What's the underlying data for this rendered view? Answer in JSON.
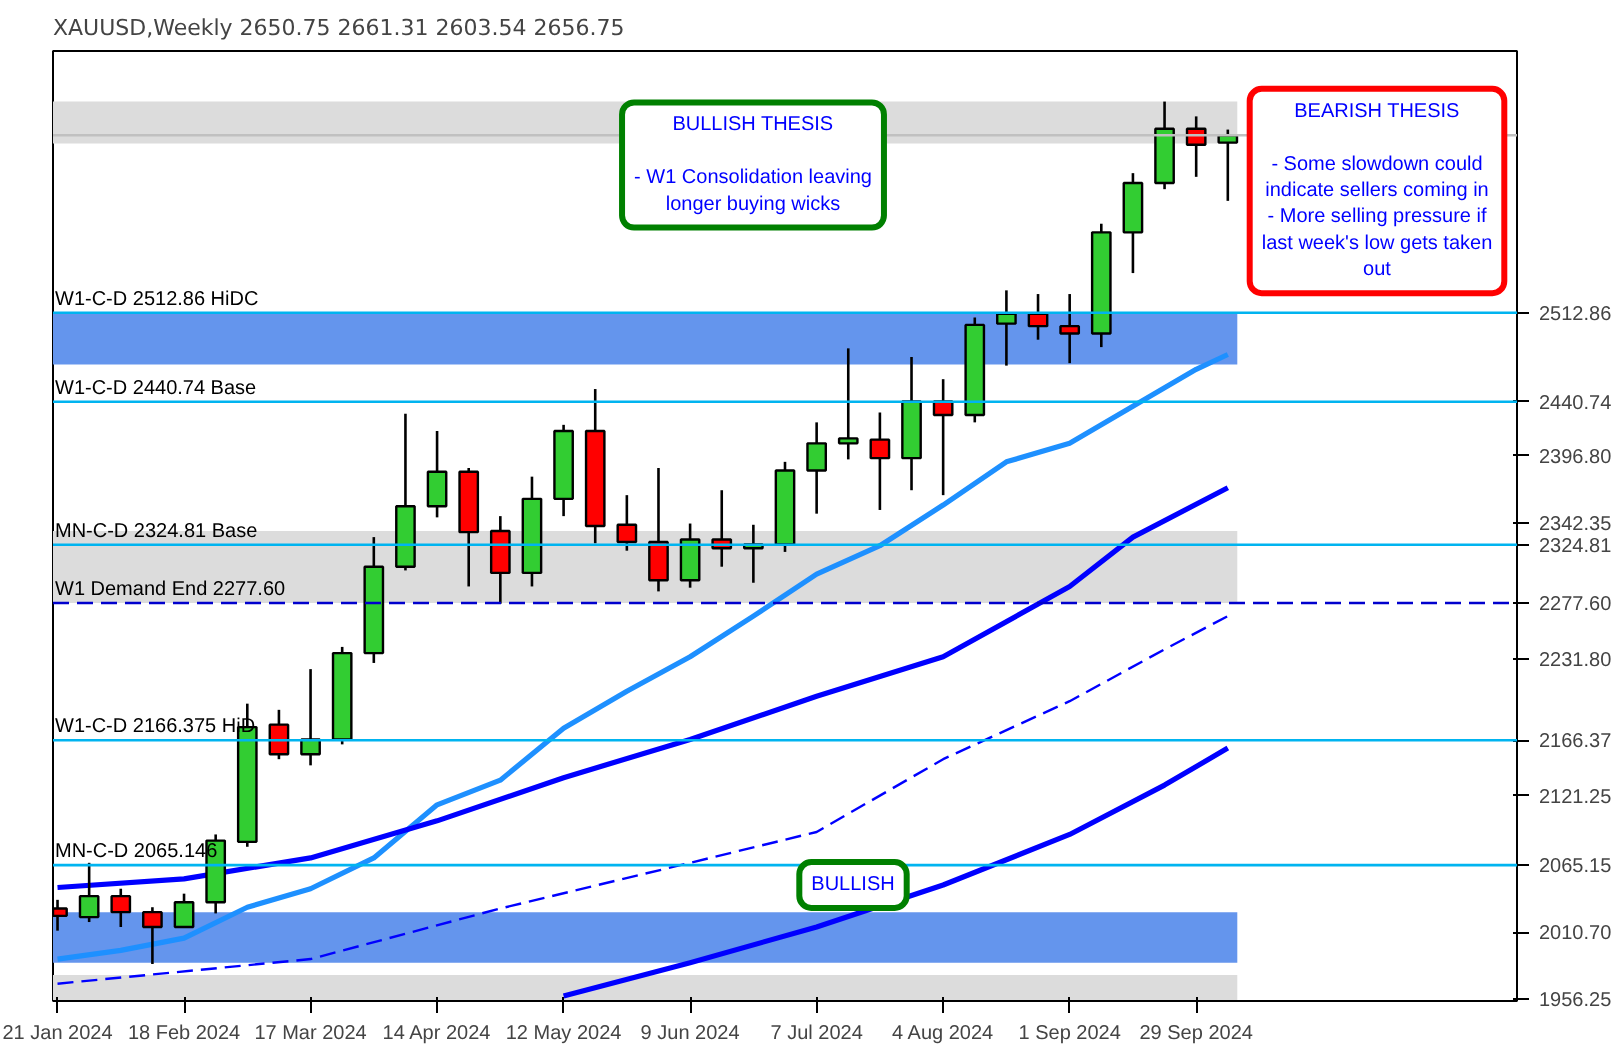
{
  "chart_data": {
    "type": "candlestick",
    "title": "XAUUSD,Weekly  2650.75 2661.31 2603.54 2656.75",
    "x": [
      "2024-01-21",
      "2024-01-28",
      "2024-02-04",
      "2024-02-11",
      "2024-02-18",
      "2024-02-25",
      "2024-03-03",
      "2024-03-10",
      "2024-03-17",
      "2024-03-24",
      "2024-03-31",
      "2024-04-07",
      "2024-04-14",
      "2024-04-21",
      "2024-04-28",
      "2024-05-05",
      "2024-05-12",
      "2024-05-19",
      "2024-05-26",
      "2024-06-02",
      "2024-06-09",
      "2024-06-16",
      "2024-06-23",
      "2024-06-30",
      "2024-07-07",
      "2024-07-14",
      "2024-07-21",
      "2024-07-28",
      "2024-08-04",
      "2024-08-11",
      "2024-08-18",
      "2024-08-25",
      "2024-09-01",
      "2024-09-08",
      "2024-09-15",
      "2024-09-22",
      "2024-09-29",
      "2024-10-06"
    ],
    "ohlc": [
      [
        2030,
        2037,
        2012,
        2024
      ],
      [
        2023,
        2067,
        2019,
        2040
      ],
      [
        2040,
        2046,
        2015,
        2027
      ],
      [
        2027,
        2031,
        1985,
        2015
      ],
      [
        2015,
        2042,
        2015,
        2035
      ],
      [
        2035,
        2090,
        2026,
        2085
      ],
      [
        2084,
        2196,
        2080,
        2177
      ],
      [
        2179,
        2191,
        2151,
        2155
      ],
      [
        2155,
        2224,
        2146,
        2167
      ],
      [
        2167,
        2242,
        2163,
        2237
      ],
      [
        2237,
        2331,
        2229,
        2307
      ],
      [
        2307,
        2431,
        2304,
        2356
      ],
      [
        2356,
        2417,
        2347,
        2384
      ],
      [
        2384,
        2387,
        2291,
        2335
      ],
      [
        2336,
        2348,
        2277,
        2302
      ],
      [
        2302,
        2380,
        2291,
        2362
      ],
      [
        2362,
        2422,
        2348,
        2417
      ],
      [
        2417,
        2451,
        2326,
        2340
      ],
      [
        2341,
        2365,
        2320,
        2327
      ],
      [
        2327,
        2387,
        2287,
        2296
      ],
      [
        2296,
        2342,
        2290,
        2329
      ],
      [
        2329,
        2369,
        2307,
        2322
      ],
      [
        2322,
        2341,
        2294,
        2325
      ],
      [
        2325,
        2392,
        2319,
        2385
      ],
      [
        2385,
        2424,
        2350,
        2407
      ],
      [
        2407,
        2484,
        2394,
        2411
      ],
      [
        2410,
        2432,
        2353,
        2395
      ],
      [
        2395,
        2477,
        2369,
        2441
      ],
      [
        2441,
        2459,
        2365,
        2430
      ],
      [
        2430,
        2509,
        2424,
        2503
      ],
      [
        2504,
        2531,
        2470,
        2512
      ],
      [
        2512,
        2528,
        2491,
        2502
      ],
      [
        2502,
        2528,
        2472,
        2496
      ],
      [
        2496,
        2585,
        2485,
        2578
      ],
      [
        2578,
        2626,
        2545,
        2618
      ],
      [
        2618,
        2684,
        2613,
        2662
      ],
      [
        2662,
        2672,
        2623,
        2649
      ],
      [
        2650.75,
        2661.31,
        2603.54,
        2656.75
      ]
    ],
    "colors": [
      "#ff0000",
      "#32cd32",
      "#ff0000",
      "#ff0000",
      "#32cd32",
      "#32cd32",
      "#32cd32",
      "#ff0000",
      "#32cd32",
      "#32cd32",
      "#32cd32",
      "#32cd32",
      "#32cd32",
      "#ff0000",
      "#ff0000",
      "#32cd32",
      "#32cd32",
      "#ff0000",
      "#ff0000",
      "#ff0000",
      "#32cd32",
      "#ff0000",
      "#32cd32",
      "#32cd32",
      "#32cd32",
      "#32cd32",
      "#ff0000",
      "#32cd32",
      "#ff0000",
      "#32cd32",
      "#32cd32",
      "#ff0000",
      "#ff0000",
      "#32cd32",
      "#32cd32",
      "#32cd32",
      "#ff0000",
      "#32cd32"
    ],
    "series": [
      {
        "type": "line",
        "color": "#1e90ff",
        "line_style": "solid",
        "x": [
          "2024-01-21",
          "2024-02-04",
          "2024-02-18",
          "2024-03-03",
          "2024-03-17",
          "2024-03-31",
          "2024-04-14",
          "2024-04-28",
          "2024-05-12",
          "2024-05-26",
          "2024-06-09",
          "2024-06-23",
          "2024-07-07",
          "2024-07-21",
          "2024-08-04",
          "2024-08-18",
          "2024-09-01",
          "2024-09-15",
          "2024-09-29",
          "2024-10-06"
        ],
        "values": [
          1989,
          1996,
          2006,
          2031,
          2046,
          2071,
          2114,
          2134,
          2176,
          2206,
          2234,
          2267,
          2301,
          2324,
          2357,
          2392,
          2407,
          2437,
          2467,
          2479
        ]
      },
      {
        "type": "line",
        "color": "#0000ff",
        "line_style": "solid",
        "x": [
          "2024-01-21",
          "2024-02-18",
          "2024-03-17",
          "2024-04-14",
          "2024-05-12",
          "2024-06-09",
          "2024-07-07",
          "2024-08-04",
          "2024-09-01",
          "2024-09-15",
          "2024-10-06"
        ],
        "values": [
          2047,
          2054,
          2071,
          2101,
          2136,
          2167,
          2202,
          2234,
          2291,
          2331,
          2371
        ]
      },
      {
        "type": "line",
        "color": "#0000ff",
        "line_style": "dashed",
        "x": [
          "2024-01-21",
          "2024-03-17",
          "2024-04-28",
          "2024-06-09",
          "2024-07-07",
          "2024-08-04",
          "2024-09-01",
          "2024-09-22",
          "2024-10-06"
        ],
        "values": [
          1969,
          1989,
          2030,
          2067,
          2092,
          2151,
          2198,
          2240,
          2267
        ]
      },
      {
        "type": "line",
        "color": "#0000ff",
        "line_style": "solid",
        "x": [
          "2024-05-12",
          "2024-06-09",
          "2024-07-07",
          "2024-08-04",
          "2024-09-01",
          "2024-09-22",
          "2024-10-06"
        ],
        "values": [
          1959,
          1986,
          2015,
          2049,
          2090,
          2130,
          2160
        ]
      }
    ],
    "xlim": [
      "2024-01-20",
      "2024-12-09"
    ],
    "xticks": [
      {
        "value": "2024-01-21",
        "label": "21 Jan 2024"
      },
      {
        "value": "2024-02-18",
        "label": "18 Feb 2024"
      },
      {
        "value": "2024-03-17",
        "label": "17 Mar 2024"
      },
      {
        "value": "2024-04-14",
        "label": "14 Apr 2024"
      },
      {
        "value": "2024-05-12",
        "label": "12 May 2024"
      },
      {
        "value": "2024-06-09",
        "label": "9 Jun 2024"
      },
      {
        "value": "2024-07-07",
        "label": "7 Jul 2024"
      },
      {
        "value": "2024-08-04",
        "label": "4 Aug 2024"
      },
      {
        "value": "2024-09-01",
        "label": "1 Sep 2024"
      },
      {
        "value": "2024-09-29",
        "label": "29 Sep 2024"
      }
    ],
    "ylim": [
      1955,
      2725
    ],
    "yticks": [
      {
        "value": 1956.25,
        "label": "1956.25"
      },
      {
        "value": 2010.7,
        "label": "2010.70"
      },
      {
        "value": 2065.146,
        "label": "2065.15"
      },
      {
        "value": 2121.25,
        "label": "2121.25"
      },
      {
        "value": 2166.375,
        "label": "2166.37"
      },
      {
        "value": 2231.8,
        "label": "2231.80"
      },
      {
        "value": 2277.6,
        "label": "2277.60"
      },
      {
        "value": 2324.81,
        "label": "2324.81"
      },
      {
        "value": 2342.35,
        "label": "2342.35"
      },
      {
        "value": 2396.8,
        "label": "2396.80"
      },
      {
        "value": 2440.74,
        "label": "2440.74"
      },
      {
        "value": 2512.86,
        "label": "2512.86"
      }
    ],
    "ref_lines": [
      {
        "axis": "y",
        "value": 2512.86,
        "label": "W1-C-D 2512.86 HiDC",
        "color": "#00b4f0",
        "line_style": "solid"
      },
      {
        "axis": "y",
        "value": 2440.74,
        "label": "W1-C-D 2440.74 Base",
        "color": "#00b4f0",
        "line_style": "solid"
      },
      {
        "axis": "y",
        "value": 2324.81,
        "label": "MN-C-D 2324.81 Base",
        "color": "#00b4f0",
        "line_style": "solid"
      },
      {
        "axis": "y",
        "value": 2277.6,
        "label": "W1 Demand End 2277.60",
        "color": "#0000cd",
        "line_style": "dashed"
      },
      {
        "axis": "y",
        "value": 2166.375,
        "label": "W1-C-D 2166.375 HiD",
        "color": "#00b4f0",
        "line_style": "solid"
      },
      {
        "axis": "y",
        "value": 2065.146,
        "label": "MN-C-D 2065.146",
        "color": "#00b4f0",
        "line_style": "solid"
      },
      {
        "axis": "y",
        "value": 2656.75,
        "color": "#c0c0c0",
        "line_style": "solid"
      }
    ],
    "bands": [
      {
        "axis": "y",
        "from": 2650,
        "to": 2684,
        "color": "#dcdcdc"
      },
      {
        "axis": "y",
        "from": 2471,
        "to": 2512.86,
        "color": "#6495ed"
      },
      {
        "axis": "y",
        "from": 2277.6,
        "to": 2336,
        "color": "#dcdcdc"
      },
      {
        "axis": "y",
        "from": 1986,
        "to": 2027,
        "color": "#6495ed"
      },
      {
        "axis": "y",
        "from": 1955,
        "to": 1976,
        "color": "#dcdcdc"
      }
    ],
    "annotations": [
      "BULLISH THESIS\n\n- W1 Consolidation leaving\nlonger buying wicks",
      "BEARISH THESIS\n\n- Some slowdown could\nindicate sellers coming in\n- More selling pressure if\nlast week's low gets taken\nout",
      "BULLISH"
    ],
    "grid": false
  }
}
